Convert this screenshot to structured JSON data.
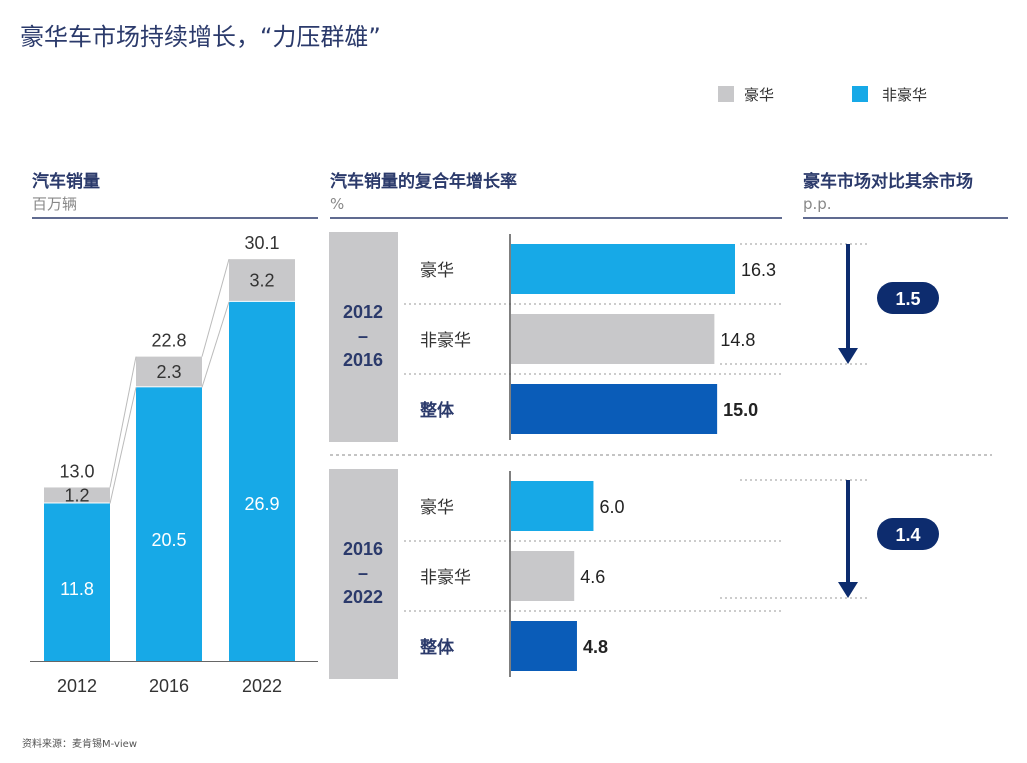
{
  "title": "豪华车市场持续增长，“力压群雄”",
  "legend": [
    {
      "label": "豪华",
      "color": "#c8c8ca"
    },
    {
      "label": "非豪华",
      "color": "#17a9e7"
    }
  ],
  "source": "资料来源：麦肯锡M-view",
  "chart_data": [
    {
      "type": "bar",
      "title": "汽车销量",
      "subtitle": "百万辆",
      "stacked": true,
      "categories": [
        "2012",
        "2016",
        "2022"
      ],
      "series": [
        {
          "name": "非豪华",
          "values": [
            11.8,
            20.5,
            26.9
          ]
        },
        {
          "name": "豪华",
          "values": [
            1.2,
            2.3,
            3.2
          ]
        }
      ],
      "totals": [
        "13.0",
        "22.8",
        "30.1"
      ],
      "ylim": [
        0,
        31
      ]
    },
    {
      "type": "bar",
      "orientation": "horizontal",
      "title": "汽车销量的复合年增长率",
      "subtitle": "%",
      "xlim": [
        0,
        16.3
      ],
      "groups": [
        {
          "period_lines": [
            "2012",
            "–",
            "2016"
          ],
          "rows": [
            {
              "label": "豪华",
              "value": 16.3,
              "display": "16.3",
              "color": "#17a9e7",
              "bold": false
            },
            {
              "label": "非豪华",
              "value": 14.8,
              "display": "14.8",
              "color": "#c8c8ca",
              "bold": false
            },
            {
              "label": "整体",
              "value": 15.0,
              "display": "15.0",
              "color": "#0a5cb8",
              "bold": true
            }
          ]
        },
        {
          "period_lines": [
            "2016",
            "–",
            "2022"
          ],
          "rows": [
            {
              "label": "豪华",
              "value": 6.0,
              "display": "6.0",
              "color": "#17a9e7",
              "bold": false
            },
            {
              "label": "非豪华",
              "value": 4.6,
              "display": "4.6",
              "color": "#c8c8ca",
              "bold": false
            },
            {
              "label": "整体",
              "value": 4.8,
              "display": "4.8",
              "color": "#0a5cb8",
              "bold": true
            }
          ]
        }
      ]
    },
    {
      "type": "annotation",
      "title": "豪车市场对比其余市场",
      "subtitle": "p.p.",
      "values": [
        {
          "value": 1.5,
          "display": "1.5"
        },
        {
          "value": 1.4,
          "display": "1.4"
        }
      ]
    }
  ]
}
